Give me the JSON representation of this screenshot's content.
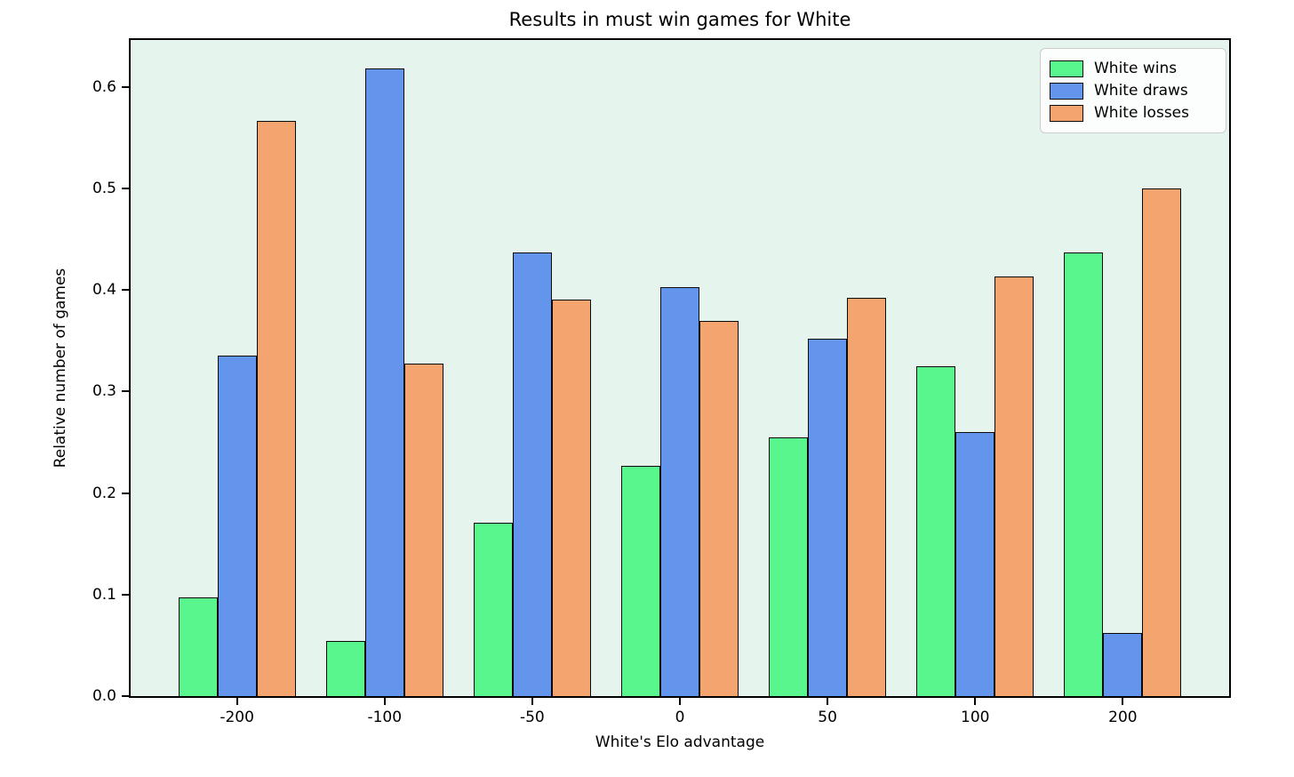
{
  "chart_data": {
    "type": "bar",
    "title": "Results in must win games for White",
    "xlabel": "White's Elo advantage",
    "ylabel": "Relative number of games",
    "categories": [
      "-200",
      "-100",
      "-50",
      "0",
      "50",
      "100",
      "200"
    ],
    "series": [
      {
        "name": "White wins",
        "color": "#58F68C",
        "values": [
          0.097,
          0.054,
          0.171,
          0.227,
          0.255,
          0.325,
          0.437
        ]
      },
      {
        "name": "White draws",
        "color": "#6495ED",
        "values": [
          0.335,
          0.618,
          0.437,
          0.403,
          0.352,
          0.26,
          0.062
        ]
      },
      {
        "name": "White losses",
        "color": "#F4A56F",
        "values": [
          0.566,
          0.327,
          0.39,
          0.369,
          0.392,
          0.413,
          0.5
        ]
      }
    ],
    "ytick_labels": [
      "0.0",
      "0.1",
      "0.2",
      "0.3",
      "0.4",
      "0.5",
      "0.6"
    ],
    "yticks": [
      0.0,
      0.1,
      0.2,
      0.3,
      0.4,
      0.5,
      0.6
    ],
    "ylim": [
      0,
      0.646
    ],
    "grid": false,
    "legend_position": "upper right",
    "plot_background": "#E5F4ED",
    "figure_background": "#FFFFFF",
    "bar_edge_color": "#0A0A0A"
  }
}
